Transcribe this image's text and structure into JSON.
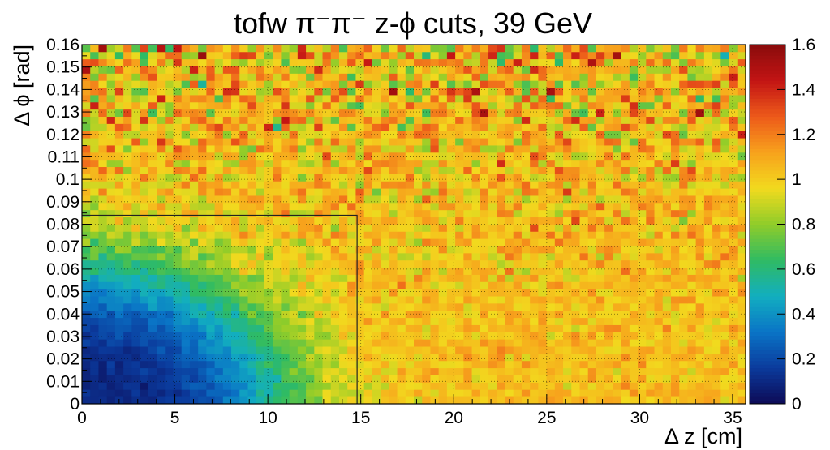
{
  "chart_data": {
    "type": "heatmap",
    "title": "tofw π⁻π⁻  z-ϕ cuts, 39 GeV",
    "xlabel": "Δ z [cm]",
    "ylabel": "Δ ϕ [rad]",
    "xlim": [
      0,
      35.7
    ],
    "ylim": [
      0,
      0.16
    ],
    "x_ticks": [
      "0",
      "5",
      "10",
      "15",
      "20",
      "25",
      "30",
      "35"
    ],
    "x_tick_values": [
      0,
      5,
      10,
      15,
      20,
      25,
      30,
      35
    ],
    "y_ticks": [
      "0",
      "0.01",
      "0.02",
      "0.03",
      "0.04",
      "0.05",
      "0.06",
      "0.07",
      "0.08",
      "0.09",
      "0.1",
      "0.11",
      "0.12",
      "0.13",
      "0.14",
      "0.15",
      "0.16"
    ],
    "y_tick_values": [
      0,
      0.01,
      0.02,
      0.03,
      0.04,
      0.05,
      0.06,
      0.07,
      0.08,
      0.09,
      0.1,
      0.11,
      0.12,
      0.13,
      0.14,
      0.15,
      0.16
    ],
    "zlim": [
      0,
      1.6
    ],
    "z_ticks": [
      "0",
      "0.2",
      "0.4",
      "0.6",
      "0.8",
      "1",
      "1.2",
      "1.4",
      "1.6"
    ],
    "z_tick_values": [
      0,
      0.2,
      0.4,
      0.6,
      0.8,
      1.0,
      1.2,
      1.4,
      1.6
    ],
    "bins": {
      "x": 80,
      "y": 50
    },
    "value_model": {
      "description": "ratio is suppressed near origin (~0.05 at 0,0) rising to ~1.0 beyond dz>10cm or dphi>0.06 rad, with noise growing toward high dphi (red/blue speckle at top)",
      "origin_value": 0.05,
      "plateau_value": 1.0,
      "x_scale_cm": 11.5,
      "y_scale_rad": 0.068
    },
    "cut_box": {
      "dz_max": 14.8,
      "dphi_max": 0.084
    },
    "grid": true,
    "colormap": "ROOT kBird-like rainbow (dark blue → cyan → green → yellow → orange → red)",
    "colors": [
      "#0d0a55",
      "#0b3a9c",
      "#0a74c6",
      "#12aec0",
      "#2fbb63",
      "#8fcc2a",
      "#f2da1e",
      "#f7a21c",
      "#ed5a1a",
      "#c31414",
      "#8a0c0c"
    ]
  }
}
